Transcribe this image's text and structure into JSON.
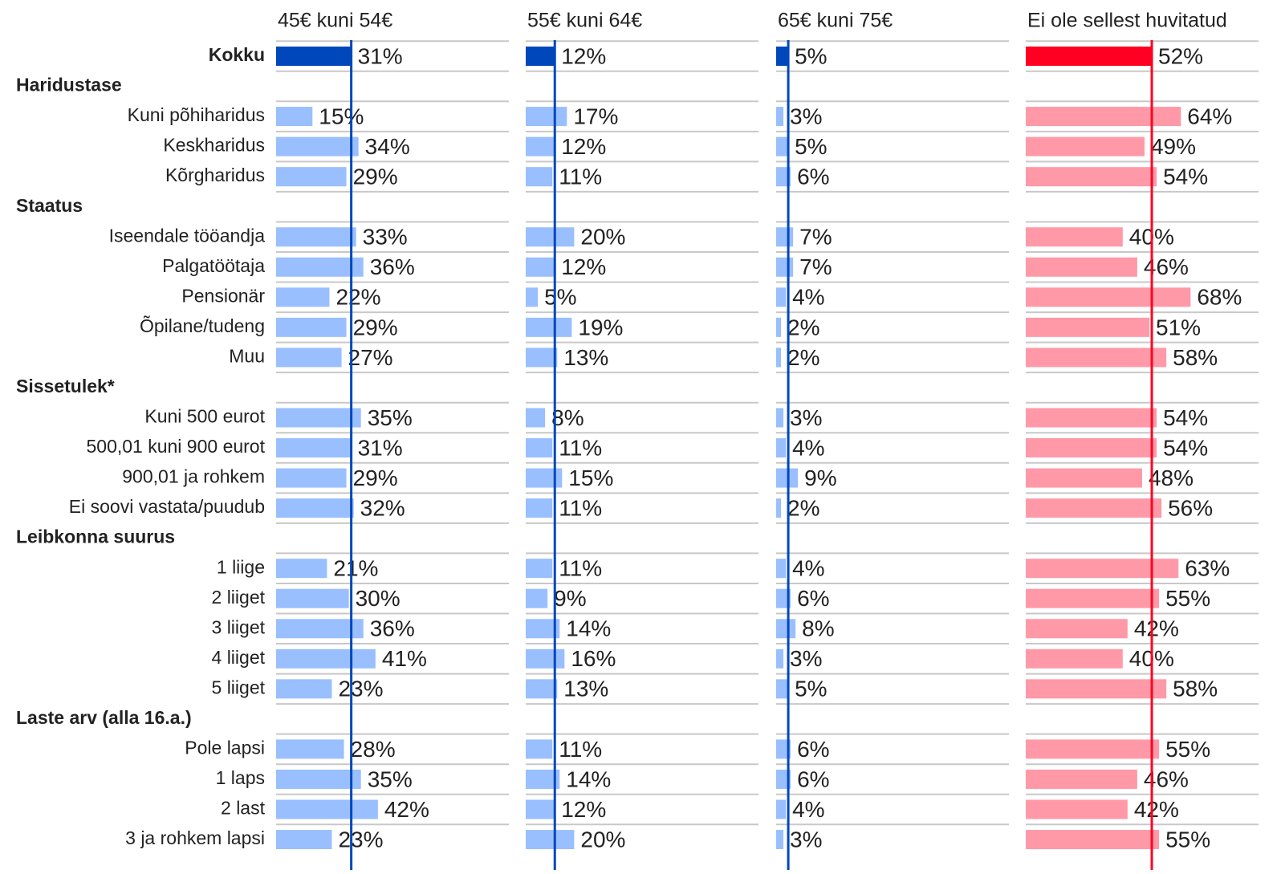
{
  "chart_data": {
    "type": "bar",
    "orientation": "horizontal",
    "total": "Kokku",
    "groups": [
      {
        "name": "Haridustase",
        "categories": [
          "Kuni põhiharidus",
          "Keskharidus",
          "Kõrgharidus"
        ]
      },
      {
        "name": "Staatus",
        "categories": [
          "Iseendale tööandja",
          "Palgatöötaja",
          "Pensionär",
          "Õpilane/tudeng",
          "Muu"
        ]
      },
      {
        "name": "Sissetulek*",
        "categories": [
          "Kuni 500 eurot",
          "500,01 kuni 900 eurot",
          "900,01 ja rohkem",
          "Ei soovi vastata/puudub"
        ]
      },
      {
        "name": "Leibkonna suurus",
        "categories": [
          "1 liige",
          "2 liiget",
          "3 liiget",
          "4 liiget",
          "5 liiget"
        ]
      },
      {
        "name": "Laste arv (alla 16.a.)",
        "categories": [
          "Pole lapsi",
          "1 laps",
          "2 last",
          "3 ja rohkem lapsi"
        ]
      }
    ],
    "series": [
      {
        "name": "45€ kuni 54€",
        "total_color": "#0047bb",
        "color": "#99bfff",
        "total_value": 31,
        "total_label": "31%",
        "values": [
          [
            15,
            34,
            29
          ],
          [
            33,
            36,
            22,
            29,
            27
          ],
          [
            35,
            31,
            29,
            32
          ],
          [
            21,
            30,
            36,
            41,
            23
          ],
          [
            28,
            35,
            42,
            23
          ]
        ],
        "value_labels": [
          [
            "15%",
            "34%",
            "29%"
          ],
          [
            "33%",
            "36%",
            "22%",
            "29%",
            "27%"
          ],
          [
            "35%",
            "31%",
            "29%",
            "32%"
          ],
          [
            "21%",
            "30%",
            "36%",
            "41%",
            "23%"
          ],
          [
            "28%",
            "35%",
            "42%",
            "23%"
          ]
        ]
      },
      {
        "name": "55€ kuni 64€",
        "total_color": "#0047bb",
        "color": "#99bfff",
        "total_value": 12,
        "total_label": "12%",
        "values": [
          [
            17,
            12,
            11
          ],
          [
            20,
            12,
            5,
            19,
            13
          ],
          [
            8,
            11,
            15,
            11
          ],
          [
            11,
            9,
            14,
            16,
            13
          ],
          [
            11,
            14,
            12,
            20
          ]
        ],
        "value_labels": [
          [
            "17%",
            "12%",
            "11%"
          ],
          [
            "20%",
            "12%",
            "5%",
            "19%",
            "13%"
          ],
          [
            "8%",
            "11%",
            "15%",
            "11%"
          ],
          [
            "11%",
            "9%",
            "14%",
            "16%",
            "13%"
          ],
          [
            "11%",
            "14%",
            "12%",
            "20%"
          ]
        ]
      },
      {
        "name": "65€ kuni 75€",
        "total_color": "#0047bb",
        "color": "#99bfff",
        "total_value": 5,
        "total_label": "5%",
        "values": [
          [
            3,
            5,
            6
          ],
          [
            7,
            7,
            4,
            2,
            2
          ],
          [
            3,
            4,
            9,
            2
          ],
          [
            4,
            6,
            8,
            3,
            5
          ],
          [
            6,
            6,
            4,
            3
          ]
        ],
        "value_labels": [
          [
            "3%",
            "5%",
            "6%"
          ],
          [
            "7%",
            "7%",
            "4%",
            "2%",
            "2%"
          ],
          [
            "3%",
            "4%",
            "9%",
            "2%"
          ],
          [
            "4%",
            "6%",
            "8%",
            "3%",
            "5%"
          ],
          [
            "6%",
            "6%",
            "4%",
            "3%"
          ]
        ]
      },
      {
        "name": "Ei ole sellest huvitatud",
        "total_color": "#ff0022",
        "color": "#ff99a8",
        "total_value": 52,
        "total_label": "52%",
        "values": [
          [
            64,
            49,
            54
          ],
          [
            40,
            46,
            68,
            51,
            58
          ],
          [
            54,
            54,
            48,
            56
          ],
          [
            63,
            55,
            42,
            40,
            58
          ],
          [
            55,
            46,
            42,
            55
          ]
        ],
        "value_labels": [
          [
            "64%",
            "49%",
            "54%"
          ],
          [
            "40%",
            "46%",
            "68%",
            "51%",
            "58%"
          ],
          [
            "54%",
            "54%",
            "48%",
            "56%"
          ],
          [
            "63%",
            "55%",
            "42%",
            "40%",
            "58%"
          ],
          [
            "55%",
            "46%",
            "42%",
            "55%"
          ]
        ]
      }
    ]
  }
}
